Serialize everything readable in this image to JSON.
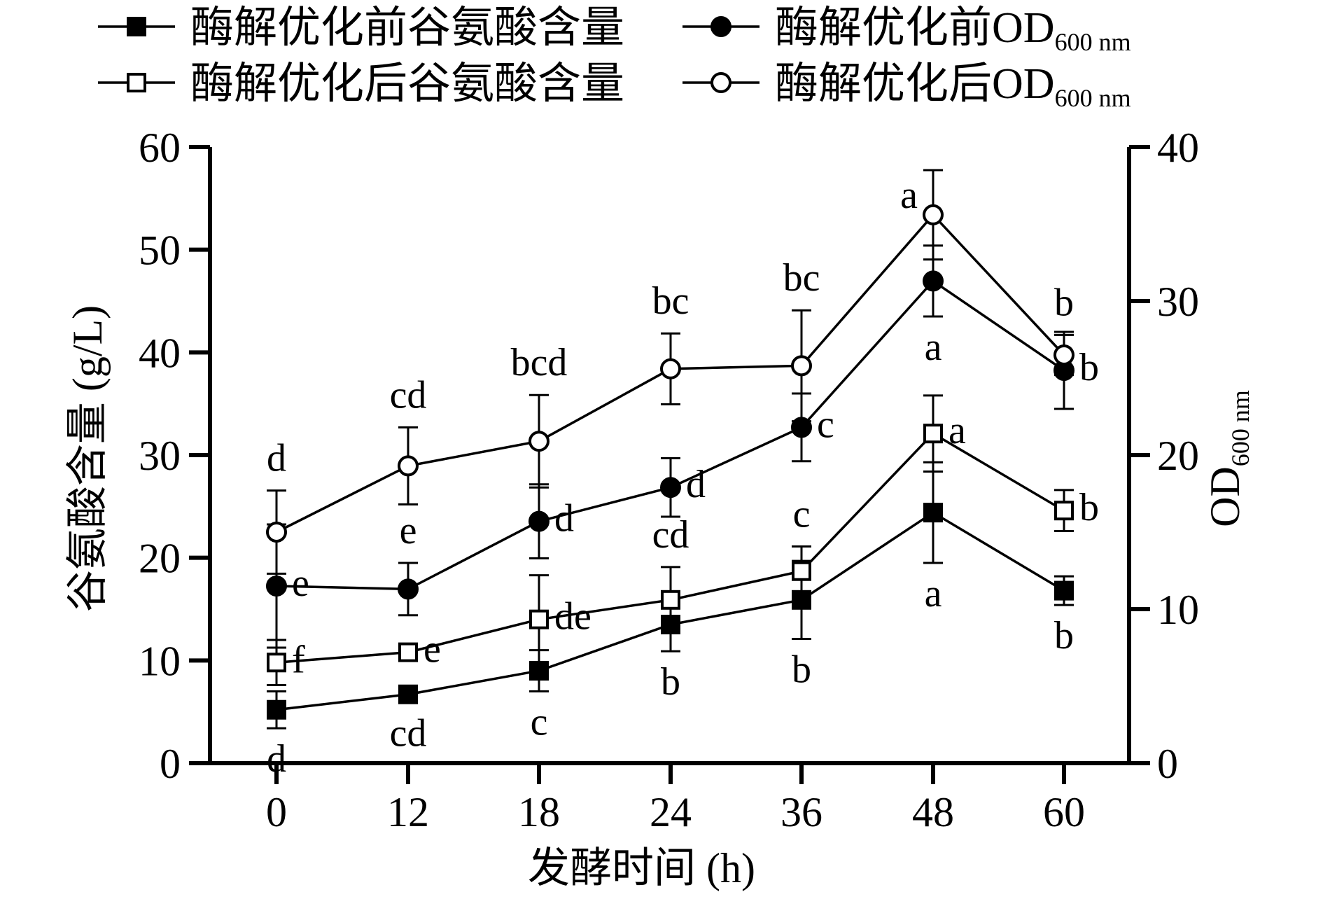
{
  "chart_data": {
    "type": "line",
    "x": [
      "0",
      "12",
      "18",
      "24",
      "36",
      "48",
      "60"
    ],
    "xlabel": "发酵时间 (h)",
    "ylabel_left": "谷氨酸含量 (g/L)",
    "ylabel_right_main": "OD",
    "ylabel_right_sub": "600 nm",
    "ylim_left": [
      0,
      60
    ],
    "ylim_right": [
      0,
      40
    ],
    "yticks_left": [
      "0",
      "10",
      "20",
      "30",
      "40",
      "50",
      "60"
    ],
    "yticks_right": [
      "0",
      "10",
      "20",
      "30",
      "40"
    ],
    "grid": false,
    "legend_position": "top",
    "series": [
      {
        "name": "酶解优化前谷氨酸含量",
        "name_sub": "",
        "axis": "left",
        "marker": "square-filled",
        "values": [
          5.2,
          6.7,
          9.0,
          13.5,
          15.9,
          24.4,
          16.8
        ],
        "errors": [
          1.8,
          0.8,
          2.0,
          2.6,
          3.8,
          4.9,
          1.4
        ],
        "labels": [
          "d",
          "cd",
          "c",
          "b",
          "b",
          "a",
          "b"
        ],
        "label_side": [
          "below",
          "below",
          "below",
          "below",
          "below",
          "below",
          "below"
        ]
      },
      {
        "name": "酶解优化后谷氨酸含量",
        "name_sub": "",
        "axis": "left",
        "marker": "square-open",
        "values": [
          9.8,
          10.8,
          14.0,
          15.9,
          18.7,
          32.1,
          24.6
        ],
        "errors": [
          2.2,
          0.8,
          4.3,
          3.2,
          2.4,
          3.7,
          2.0
        ],
        "labels": [
          "f",
          "e",
          "de",
          "cd",
          "c",
          "a",
          "b"
        ],
        "label_side": [
          "right",
          "right",
          "right",
          "above",
          "above",
          "right",
          "right"
        ]
      },
      {
        "name": "酶解优化前OD",
        "name_sub": "600 nm",
        "axis": "right",
        "marker": "circle-filled",
        "values": [
          11.5,
          11.3,
          15.7,
          17.9,
          21.8,
          31.3,
          25.5
        ],
        "errors": [
          4.0,
          1.7,
          2.4,
          1.9,
          2.2,
          2.3,
          2.5
        ],
        "labels": [
          "e",
          "e",
          "d",
          "d",
          "c",
          "a",
          "b"
        ],
        "label_side": [
          "right",
          "above",
          "right",
          "right",
          "right",
          "below",
          "right"
        ]
      },
      {
        "name": "酶解优化后OD",
        "name_sub": "600 nm",
        "axis": "right",
        "marker": "circle-open",
        "values": [
          15.0,
          19.3,
          20.9,
          25.6,
          25.8,
          35.6,
          26.5
        ],
        "errors": [
          2.7,
          2.5,
          3.0,
          2.3,
          3.6,
          2.9,
          1.3
        ],
        "labels": [
          "d",
          "cd",
          "bcd",
          "bc",
          "bc",
          "a",
          "b"
        ],
        "label_side": [
          "above",
          "above",
          "above",
          "above",
          "above",
          "left",
          "above"
        ]
      }
    ]
  }
}
